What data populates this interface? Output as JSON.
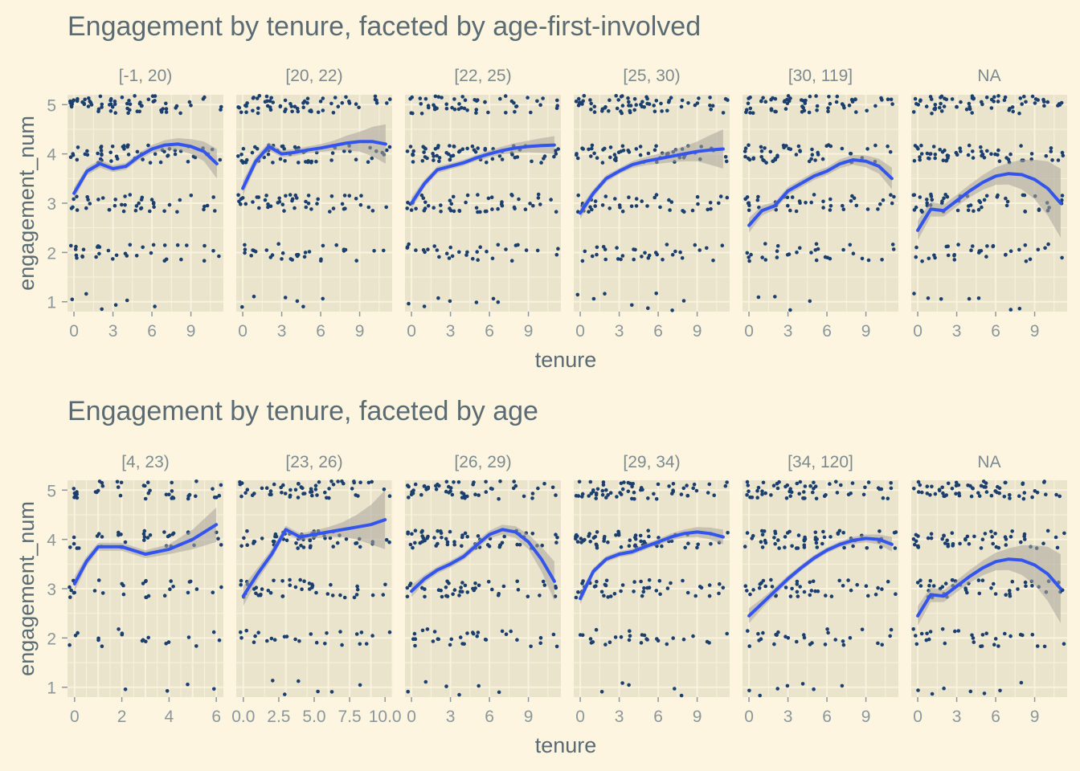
{
  "colors": {
    "background": "#fdf5e0",
    "panel": "#ebe4cd",
    "grid": "#f8f2de",
    "point": "#1b3f6e",
    "smooth": "#3355ee",
    "band": "#a8a49a",
    "title": "#5b6b73",
    "strip": "#7d8a90",
    "tick": "#8c979b"
  },
  "chart_data": [
    {
      "type": "scatter",
      "title": "Engagement by tenure, faceted by age-first-involved",
      "xlabel": "tenure",
      "ylabel": "engagement_num",
      "y_ticks": [
        "1",
        "2",
        "3",
        "4",
        "5"
      ],
      "ylim": [
        0.8,
        5.2
      ],
      "facets": [
        {
          "label": "[-1, 20)",
          "xlim": [
            -0.5,
            11.5
          ],
          "x_ticks": [
            "0",
            "3",
            "6",
            "9"
          ],
          "smooth": [
            [
              0,
              3.2
            ],
            [
              1,
              3.65
            ],
            [
              2,
              3.8
            ],
            [
              3,
              3.7
            ],
            [
              4,
              3.75
            ],
            [
              5,
              3.95
            ],
            [
              6,
              4.1
            ],
            [
              7,
              4.18
            ],
            [
              8,
              4.2
            ],
            [
              9,
              4.15
            ],
            [
              10,
              4.05
            ],
            [
              11,
              3.8
            ]
          ],
          "band": [
            0.12,
            0.08,
            0.08,
            0.07,
            0.07,
            0.07,
            0.08,
            0.1,
            0.12,
            0.15,
            0.2,
            0.3
          ]
        },
        {
          "label": "[20, 22)",
          "xlim": [
            -0.5,
            11.5
          ],
          "x_ticks": [
            "0",
            "3",
            "6",
            "9"
          ],
          "smooth": [
            [
              0,
              3.3
            ],
            [
              1,
              3.85
            ],
            [
              2,
              4.15
            ],
            [
              3,
              4.0
            ],
            [
              4,
              4.03
            ],
            [
              5,
              4.08
            ],
            [
              6,
              4.12
            ],
            [
              7,
              4.17
            ],
            [
              8,
              4.22
            ],
            [
              9,
              4.25
            ],
            [
              10,
              4.25
            ],
            [
              11,
              4.2
            ]
          ],
          "band": [
            0.15,
            0.1,
            0.08,
            0.07,
            0.07,
            0.07,
            0.08,
            0.1,
            0.15,
            0.2,
            0.3,
            0.4
          ]
        },
        {
          "label": "[22, 25)",
          "xlim": [
            -0.5,
            11.5
          ],
          "x_ticks": [
            "0",
            "3",
            "6",
            "9"
          ],
          "smooth": [
            [
              0,
              3.0
            ],
            [
              1,
              3.4
            ],
            [
              2,
              3.68
            ],
            [
              3,
              3.75
            ],
            [
              4,
              3.82
            ],
            [
              5,
              3.92
            ],
            [
              6,
              4.0
            ],
            [
              7,
              4.07
            ],
            [
              8,
              4.12
            ],
            [
              9,
              4.15
            ],
            [
              10,
              4.17
            ],
            [
              11,
              4.18
            ]
          ],
          "band": [
            0.12,
            0.08,
            0.07,
            0.06,
            0.06,
            0.06,
            0.07,
            0.08,
            0.1,
            0.12,
            0.15,
            0.18
          ]
        },
        {
          "label": "[25, 30)",
          "xlim": [
            -0.5,
            11.5
          ],
          "x_ticks": [
            "0",
            "3",
            "6",
            "9"
          ],
          "smooth": [
            [
              0,
              2.8
            ],
            [
              1,
              3.2
            ],
            [
              2,
              3.5
            ],
            [
              3,
              3.65
            ],
            [
              4,
              3.78
            ],
            [
              5,
              3.85
            ],
            [
              6,
              3.9
            ],
            [
              7,
              3.95
            ],
            [
              8,
              4.0
            ],
            [
              9,
              4.05
            ],
            [
              10,
              4.08
            ],
            [
              11,
              4.1
            ]
          ],
          "band": [
            0.12,
            0.08,
            0.07,
            0.06,
            0.07,
            0.08,
            0.1,
            0.12,
            0.15,
            0.2,
            0.3,
            0.4
          ]
        },
        {
          "label": "[30, 119]",
          "xlim": [
            -0.5,
            11.5
          ],
          "x_ticks": [
            "0",
            "3",
            "6",
            "9"
          ],
          "smooth": [
            [
              0,
              2.55
            ],
            [
              1,
              2.85
            ],
            [
              2,
              2.95
            ],
            [
              3,
              3.25
            ],
            [
              4,
              3.4
            ],
            [
              5,
              3.55
            ],
            [
              6,
              3.65
            ],
            [
              7,
              3.8
            ],
            [
              8,
              3.88
            ],
            [
              9,
              3.85
            ],
            [
              10,
              3.75
            ],
            [
              11,
              3.5
            ]
          ],
          "band": [
            0.15,
            0.1,
            0.08,
            0.08,
            0.08,
            0.08,
            0.08,
            0.09,
            0.1,
            0.12,
            0.15,
            0.22
          ]
        },
        {
          "label": "NA",
          "xlim": [
            -0.5,
            11.5
          ],
          "x_ticks": [
            "0",
            "3",
            "6",
            "9"
          ],
          "smooth": [
            [
              0,
              2.45
            ],
            [
              1,
              2.88
            ],
            [
              2,
              2.85
            ],
            [
              3,
              3.05
            ],
            [
              4,
              3.25
            ],
            [
              5,
              3.42
            ],
            [
              6,
              3.55
            ],
            [
              7,
              3.6
            ],
            [
              8,
              3.58
            ],
            [
              9,
              3.48
            ],
            [
              10,
              3.3
            ],
            [
              11,
              3.0
            ]
          ],
          "band": [
            0.2,
            0.15,
            0.12,
            0.12,
            0.13,
            0.15,
            0.18,
            0.22,
            0.3,
            0.4,
            0.55,
            0.7
          ]
        }
      ]
    },
    {
      "type": "scatter",
      "title": "Engagement by tenure, faceted by age",
      "xlabel": "tenure",
      "ylabel": "engagement_num",
      "y_ticks": [
        "1",
        "2",
        "3",
        "4",
        "5"
      ],
      "ylim": [
        0.8,
        5.2
      ],
      "facets": [
        {
          "label": "[4, 23)",
          "xlim": [
            -0.3,
            6.3
          ],
          "x_ticks": [
            "0",
            "2",
            "4",
            "6"
          ],
          "smooth": [
            [
              0,
              3.1
            ],
            [
              0.5,
              3.55
            ],
            [
              1,
              3.85
            ],
            [
              2,
              3.85
            ],
            [
              3,
              3.7
            ],
            [
              4,
              3.8
            ],
            [
              5,
              4.0
            ],
            [
              6,
              4.3
            ]
          ],
          "band": [
            0.15,
            0.1,
            0.08,
            0.08,
            0.08,
            0.1,
            0.2,
            0.35
          ]
        },
        {
          "label": "[23, 26)",
          "xlim": [
            -0.5,
            10.5
          ],
          "x_ticks": [
            "0.0",
            "2.5",
            "5.0",
            "7.5",
            "10.0"
          ],
          "smooth": [
            [
              0,
              2.85
            ],
            [
              1,
              3.3
            ],
            [
              2,
              3.7
            ],
            [
              3,
              4.2
            ],
            [
              4,
              4.05
            ],
            [
              5,
              4.1
            ],
            [
              6,
              4.15
            ],
            [
              7,
              4.2
            ],
            [
              8,
              4.25
            ],
            [
              9,
              4.3
            ],
            [
              10,
              4.4
            ]
          ],
          "band": [
            0.2,
            0.12,
            0.1,
            0.08,
            0.07,
            0.08,
            0.1,
            0.15,
            0.25,
            0.4,
            0.6
          ]
        },
        {
          "label": "[26, 29)",
          "xlim": [
            -0.5,
            11.5
          ],
          "x_ticks": [
            "0",
            "3",
            "6",
            "9"
          ],
          "smooth": [
            [
              0,
              2.95
            ],
            [
              1,
              3.2
            ],
            [
              2,
              3.38
            ],
            [
              3,
              3.5
            ],
            [
              4,
              3.65
            ],
            [
              5,
              3.88
            ],
            [
              6,
              4.1
            ],
            [
              7,
              4.2
            ],
            [
              8,
              4.15
            ],
            [
              9,
              3.95
            ],
            [
              10,
              3.6
            ],
            [
              11,
              3.15
            ]
          ],
          "band": [
            0.12,
            0.08,
            0.07,
            0.07,
            0.07,
            0.08,
            0.08,
            0.1,
            0.12,
            0.15,
            0.25,
            0.4
          ]
        },
        {
          "label": "[29, 34)",
          "xlim": [
            -0.5,
            11.5
          ],
          "x_ticks": [
            "0",
            "3",
            "6",
            "9"
          ],
          "smooth": [
            [
              0,
              2.8
            ],
            [
              1,
              3.35
            ],
            [
              2,
              3.6
            ],
            [
              3,
              3.7
            ],
            [
              4,
              3.75
            ],
            [
              5,
              3.85
            ],
            [
              6,
              3.95
            ],
            [
              7,
              4.05
            ],
            [
              8,
              4.12
            ],
            [
              9,
              4.15
            ],
            [
              10,
              4.12
            ],
            [
              11,
              4.05
            ]
          ],
          "band": [
            0.12,
            0.07,
            0.06,
            0.06,
            0.06,
            0.06,
            0.06,
            0.07,
            0.08,
            0.1,
            0.12,
            0.15
          ]
        },
        {
          "label": "[34, 120]",
          "xlim": [
            -0.5,
            11.5
          ],
          "x_ticks": [
            "0",
            "3",
            "6",
            "9"
          ],
          "smooth": [
            [
              0,
              2.45
            ],
            [
              1,
              2.7
            ],
            [
              2,
              2.95
            ],
            [
              3,
              3.2
            ],
            [
              4,
              3.42
            ],
            [
              5,
              3.62
            ],
            [
              6,
              3.78
            ],
            [
              7,
              3.9
            ],
            [
              8,
              3.98
            ],
            [
              9,
              4.02
            ],
            [
              10,
              4.0
            ],
            [
              11,
              3.9
            ]
          ],
          "band": [
            0.15,
            0.1,
            0.08,
            0.07,
            0.06,
            0.06,
            0.06,
            0.06,
            0.07,
            0.08,
            0.1,
            0.15
          ]
        },
        {
          "label": "NA",
          "xlim": [
            -0.5,
            11.5
          ],
          "x_ticks": [
            "0",
            "3",
            "6",
            "9"
          ],
          "smooth": [
            [
              0,
              2.45
            ],
            [
              1,
              2.88
            ],
            [
              2,
              2.85
            ],
            [
              3,
              3.05
            ],
            [
              4,
              3.25
            ],
            [
              5,
              3.42
            ],
            [
              6,
              3.55
            ],
            [
              7,
              3.6
            ],
            [
              8,
              3.58
            ],
            [
              9,
              3.48
            ],
            [
              10,
              3.3
            ],
            [
              11,
              3.0
            ]
          ],
          "band": [
            0.2,
            0.15,
            0.12,
            0.12,
            0.13,
            0.15,
            0.18,
            0.22,
            0.3,
            0.4,
            0.55,
            0.7
          ]
        }
      ]
    }
  ]
}
